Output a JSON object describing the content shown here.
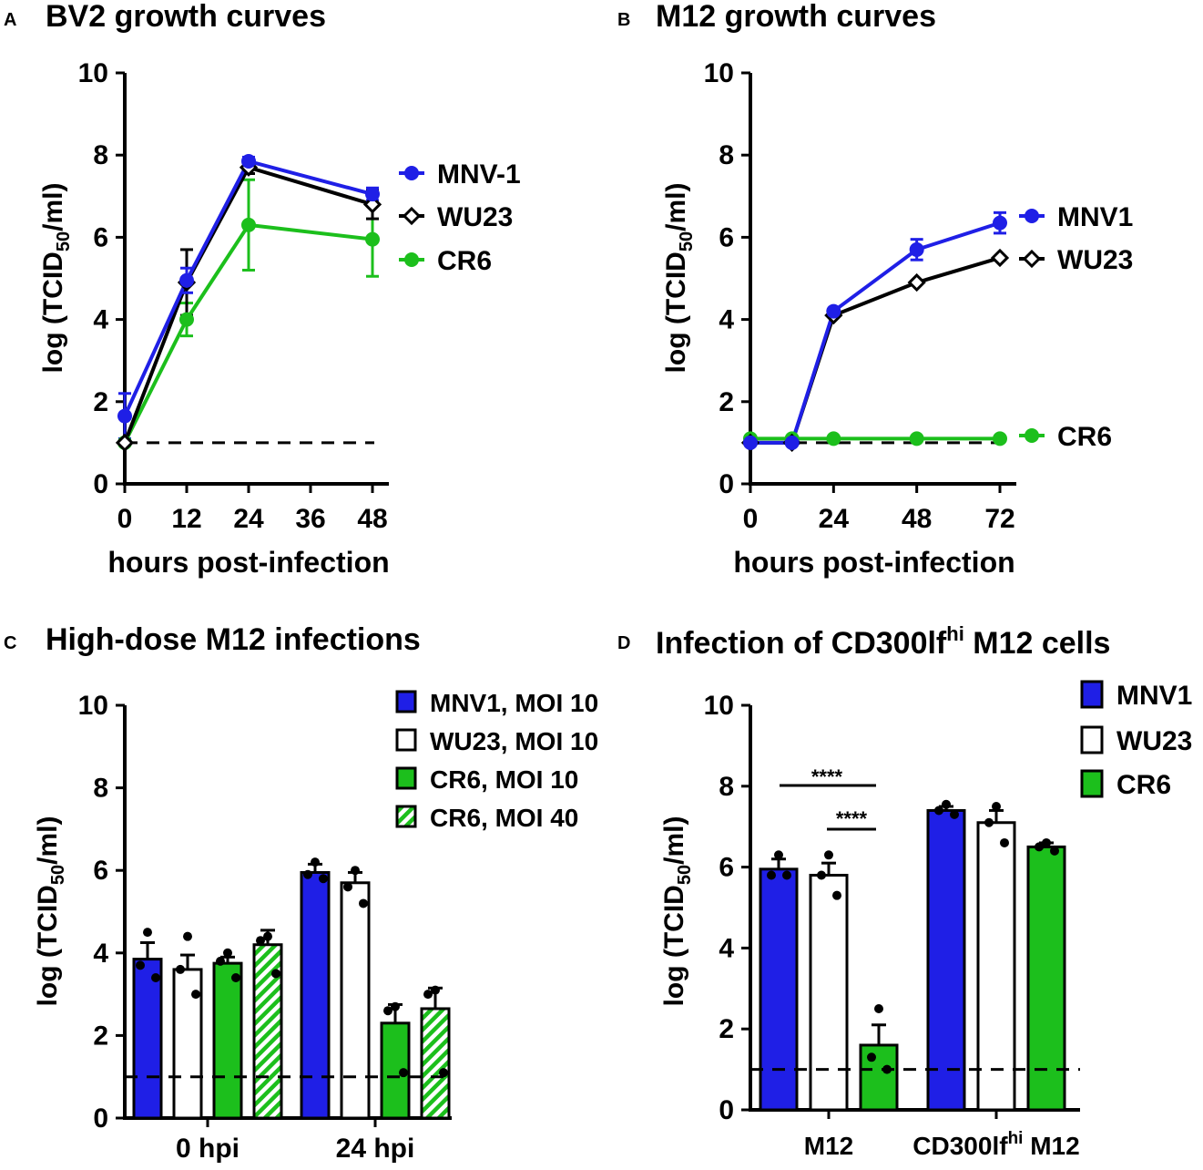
{
  "colors": {
    "blue": "#1f1fe6",
    "green": "#1cbf1c",
    "black": "#000000",
    "white": "#ffffff"
  },
  "chart_data": [
    {
      "panel": "A",
      "type": "line",
      "title": "BV2 growth curves",
      "xlabel": "hours post-infection",
      "ylabel": "log (TCID",
      "ylabel_sub": "50",
      "ylabel_end": "/ml)",
      "xlim": [
        0,
        48
      ],
      "ylim": [
        0,
        10
      ],
      "xticks": [
        0,
        12,
        24,
        36,
        48
      ],
      "yticks": [
        0,
        2,
        4,
        6,
        8,
        10
      ],
      "limit_of_detection": 1,
      "series": [
        {
          "name": "MNV-1",
          "color": "#1f1fe6",
          "marker": "circle",
          "x": [
            0,
            12,
            24,
            48
          ],
          "y": [
            1.65,
            4.95,
            7.85,
            7.05
          ],
          "err": [
            0.55,
            0.3,
            0.1,
            0.15
          ]
        },
        {
          "name": "WU23",
          "color": "#000000",
          "marker": "diamond",
          "x": [
            0,
            12,
            24,
            48
          ],
          "y": [
            1.0,
            4.9,
            7.7,
            6.8
          ],
          "err": [
            0,
            0.8,
            0.15,
            0.35
          ]
        },
        {
          "name": "CR6",
          "color": "#1cbf1c",
          "marker": "circle",
          "x": [
            0,
            12,
            24,
            48
          ],
          "y": [
            1.0,
            4.0,
            6.3,
            5.95
          ],
          "err": [
            0,
            0.4,
            1.1,
            0.9
          ]
        }
      ]
    },
    {
      "panel": "B",
      "type": "line",
      "title": "M12 growth curves",
      "xlabel": "hours post-infection",
      "ylabel": "log (TCID",
      "ylabel_sub": "50",
      "ylabel_end": "/ml)",
      "xlim": [
        0,
        72
      ],
      "ylim": [
        0,
        10
      ],
      "xticks": [
        0,
        24,
        48,
        72
      ],
      "yticks": [
        0,
        2,
        4,
        6,
        8,
        10
      ],
      "limit_of_detection": 1,
      "series": [
        {
          "name": "MNV1",
          "color": "#1f1fe6",
          "marker": "circle",
          "x": [
            0,
            12,
            24,
            48,
            72
          ],
          "y": [
            1.0,
            1.0,
            4.2,
            5.7,
            6.35
          ],
          "err": [
            0,
            0,
            0.05,
            0.25,
            0.25
          ]
        },
        {
          "name": "WU23",
          "color": "#000000",
          "marker": "diamond",
          "x": [
            0,
            12,
            24,
            48,
            72
          ],
          "y": [
            1.0,
            1.0,
            4.1,
            4.9,
            5.5
          ],
          "err": [
            0,
            0,
            0,
            0,
            0
          ]
        },
        {
          "name": "CR6",
          "color": "#1cbf1c",
          "marker": "circle",
          "x": [
            0,
            12,
            24,
            48,
            72
          ],
          "y": [
            1.1,
            1.1,
            1.1,
            1.1,
            1.1
          ],
          "err": [
            0,
            0,
            0,
            0,
            0
          ]
        }
      ]
    },
    {
      "panel": "C",
      "type": "bar",
      "title": "High-dose M12 infections",
      "ylabel": "log (TCID",
      "ylabel_sub": "50",
      "ylabel_end": "/ml)",
      "ylim": [
        0,
        10
      ],
      "yticks": [
        0,
        2,
        4,
        6,
        8,
        10
      ],
      "categories": [
        "0 hpi",
        "24 hpi"
      ],
      "limit_of_detection": 1,
      "series": [
        {
          "name": "MNV1, MOI 10",
          "fill": "blue",
          "values": [
            3.85,
            5.95
          ],
          "err": [
            0.4,
            0.2
          ],
          "points": [
            [
              4.5,
              3.7,
              3.4
            ],
            [
              6.2,
              5.9,
              5.8
            ]
          ]
        },
        {
          "name": "WU23, MOI 10",
          "fill": "white",
          "values": [
            3.6,
            5.7
          ],
          "err": [
            0.35,
            0.25
          ],
          "points": [
            [
              4.4,
              3.6,
              3.0
            ],
            [
              6.0,
              5.6,
              5.2
            ]
          ]
        },
        {
          "name": "CR6, MOI 10",
          "fill": "green",
          "values": [
            3.75,
            2.3
          ],
          "err": [
            0.15,
            0.45
          ],
          "points": [
            [
              4.0,
              3.8,
              3.4
            ],
            [
              2.7,
              2.6,
              1.1
            ]
          ]
        },
        {
          "name": "CR6, MOI 40",
          "fill": "hatch",
          "values": [
            4.2,
            2.65
          ],
          "err": [
            0.35,
            0.5
          ],
          "points": [
            [
              4.4,
              4.3,
              3.5
            ],
            [
              3.1,
              3.0,
              1.1
            ]
          ]
        }
      ]
    },
    {
      "panel": "D",
      "type": "bar",
      "title": "Infection of CD300lf",
      "title_sup": "hi",
      "title_end": " M12 cells",
      "ylabel": "log (TCID",
      "ylabel_sub": "50",
      "ylabel_end": "/ml)",
      "ylim": [
        0,
        10
      ],
      "yticks": [
        0,
        2,
        4,
        6,
        8,
        10
      ],
      "categories": [
        "M12",
        "CD300lf"
      ],
      "category_sup": [
        "",
        "hi"
      ],
      "category_end": [
        "",
        " M12"
      ],
      "limit_of_detection": 1,
      "significance": [
        "****",
        "****"
      ],
      "series": [
        {
          "name": "MNV1",
          "fill": "blue",
          "values": [
            5.95,
            7.4
          ],
          "err": [
            0.25,
            0.1
          ],
          "points": [
            [
              6.3,
              5.8,
              5.8
            ],
            [
              7.55,
              7.4,
              7.3
            ]
          ]
        },
        {
          "name": "WU23",
          "fill": "white",
          "values": [
            5.8,
            7.1
          ],
          "err": [
            0.3,
            0.3
          ],
          "points": [
            [
              6.3,
              5.8,
              5.3
            ],
            [
              7.5,
              7.1,
              6.6
            ]
          ]
        },
        {
          "name": "CR6",
          "fill": "green",
          "values": [
            1.6,
            6.5
          ],
          "err": [
            0.5,
            0.1
          ],
          "points": [
            [
              2.5,
              1.3,
              1.0
            ],
            [
              6.6,
              6.5,
              6.4
            ]
          ]
        }
      ]
    }
  ]
}
